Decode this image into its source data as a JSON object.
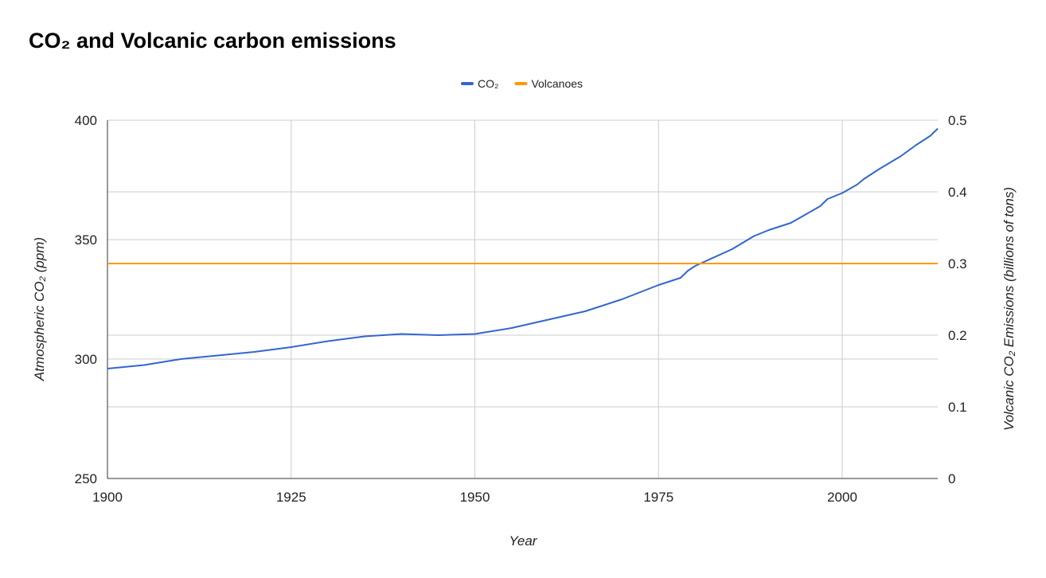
{
  "chart_data": {
    "type": "line",
    "title": "CO₂ and Volcanic carbon emissions",
    "xlabel": "Year",
    "ylabel_left": "Atmospheric CO₂ (ppm)",
    "ylabel_right": "Volcanic CO₂ Emissions (billions of tons)",
    "xlim": [
      1900,
      2013
    ],
    "ylim_left": [
      250,
      400
    ],
    "ylim_right": [
      0,
      0.5
    ],
    "x_ticks": [
      1900,
      1925,
      1950,
      1975,
      2000
    ],
    "y_ticks_left": [
      250,
      300,
      350,
      400
    ],
    "y_ticks_right": [
      0,
      0.1,
      0.2,
      0.3,
      0.4,
      0.5
    ],
    "grid": true,
    "legend_position": "top",
    "series": [
      {
        "name": "CO₂",
        "axis": "left",
        "color": "#3366cc",
        "x": [
          1900,
          1905,
          1910,
          1915,
          1920,
          1925,
          1930,
          1935,
          1940,
          1945,
          1950,
          1955,
          1960,
          1965,
          1970,
          1975,
          1978,
          1979,
          1980,
          1985,
          1988,
          1990,
          1993,
          1995,
          1997,
          1998,
          2000,
          2002,
          2003,
          2005,
          2008,
          2010,
          2012,
          2013
        ],
        "y": [
          296,
          297.5,
          300,
          301.5,
          303,
          305,
          307.5,
          309.5,
          310.5,
          310,
          310.5,
          313,
          316.5,
          320,
          325,
          331,
          334,
          337,
          339,
          346,
          351.5,
          354,
          357,
          360.5,
          364,
          367,
          369.5,
          373,
          375.5,
          379.5,
          385,
          389.5,
          393.5,
          396.5
        ]
      },
      {
        "name": "Volcanoes",
        "axis": "right",
        "color": "#ff9900",
        "x": [
          1900,
          2013
        ],
        "y": [
          0.3,
          0.3
        ]
      }
    ]
  }
}
